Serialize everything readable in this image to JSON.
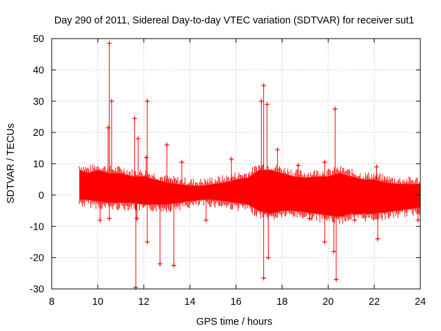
{
  "chart_data": {
    "type": "scatter",
    "title": "Day 290 of 2011, Sidereal Day-to-day VTEC variation (SDTVAR) for receiver sut1",
    "xlabel": "GPS time / hours",
    "ylabel": "SDTVAR / TECUs",
    "xlim": [
      8,
      24
    ],
    "ylim": [
      -30,
      50
    ],
    "xticks": [
      8,
      10,
      12,
      14,
      16,
      18,
      20,
      22,
      24
    ],
    "yticks": [
      -30,
      -20,
      -10,
      0,
      10,
      20,
      30,
      40,
      50
    ],
    "grid": true,
    "series_color": "#ff0000",
    "band": {
      "x": [
        9.2,
        9.6,
        10.0,
        10.5,
        11.0,
        11.5,
        12.0,
        12.5,
        13.0,
        13.5,
        14.0,
        14.5,
        15.0,
        15.5,
        16.0,
        16.5,
        17.0,
        17.5,
        18.0,
        18.5,
        19.0,
        19.5,
        20.0,
        20.5,
        21.0,
        21.5,
        22.0,
        22.5,
        23.0,
        23.5,
        24.0
      ],
      "upper": [
        8,
        7,
        8,
        7,
        7,
        6,
        6,
        5,
        4,
        3.5,
        3,
        3,
        3.5,
        4,
        5,
        5.5,
        8,
        8,
        7,
        6,
        5.5,
        6,
        6,
        7,
        6,
        5,
        5,
        4,
        3.5,
        3.5,
        3.5
      ],
      "lower": [
        -1.5,
        -1.5,
        -2,
        -2.5,
        -2.5,
        -2.5,
        -3,
        -3,
        -3,
        -2.5,
        -2,
        -1.5,
        -1.5,
        -2,
        -2.5,
        -3,
        -5,
        -6,
        -5,
        -5,
        -5.5,
        -6,
        -6.5,
        -7,
        -6,
        -6,
        -6,
        -5.5,
        -5,
        -4.5,
        -4
      ]
    },
    "spikes": [
      {
        "x": 10.5,
        "y": 48.5
      },
      {
        "x": 10.6,
        "y": 30
      },
      {
        "x": 10.45,
        "y": 21.5
      },
      {
        "x": 10.5,
        "y": -7.5
      },
      {
        "x": 10.1,
        "y": -8
      },
      {
        "x": 11.6,
        "y": 24.5
      },
      {
        "x": 11.75,
        "y": 18
      },
      {
        "x": 11.7,
        "y": -7.5
      },
      {
        "x": 11.65,
        "y": -29.5
      },
      {
        "x": 12.15,
        "y": 30
      },
      {
        "x": 12.15,
        "y": -15
      },
      {
        "x": 12.1,
        "y": 12
      },
      {
        "x": 12.7,
        "y": -22
      },
      {
        "x": 13.0,
        "y": 16
      },
      {
        "x": 13.3,
        "y": -22.5
      },
      {
        "x": 13.65,
        "y": 10.5
      },
      {
        "x": 14.7,
        "y": -8
      },
      {
        "x": 15.8,
        "y": 11.5
      },
      {
        "x": 17.2,
        "y": 35
      },
      {
        "x": 17.35,
        "y": 29
      },
      {
        "x": 17.1,
        "y": 30
      },
      {
        "x": 17.2,
        "y": -26.5
      },
      {
        "x": 17.4,
        "y": -20
      },
      {
        "x": 17.8,
        "y": 14.5
      },
      {
        "x": 18.7,
        "y": 9.5
      },
      {
        "x": 19.2,
        "y": -7.5
      },
      {
        "x": 19.85,
        "y": 10.5
      },
      {
        "x": 19.85,
        "y": -15
      },
      {
        "x": 20.3,
        "y": 27.5
      },
      {
        "x": 20.35,
        "y": -27
      },
      {
        "x": 20.25,
        "y": -18
      },
      {
        "x": 21.15,
        "y": -8
      },
      {
        "x": 22.1,
        "y": 9
      },
      {
        "x": 22.15,
        "y": -14
      },
      {
        "x": 22.55,
        "y": 4.5
      },
      {
        "x": 23.9,
        "y": -8
      }
    ]
  }
}
